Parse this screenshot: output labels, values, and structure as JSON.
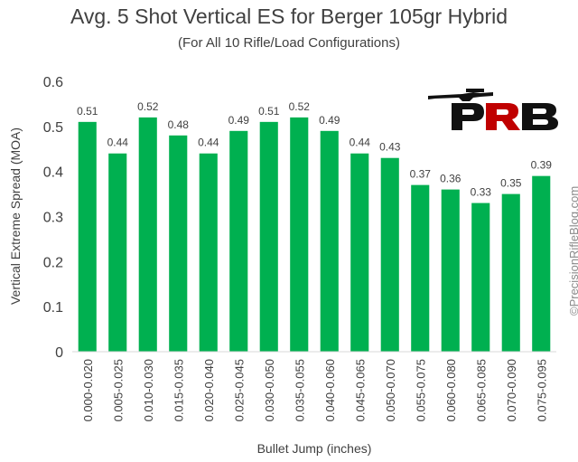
{
  "chart_data": {
    "type": "bar",
    "title": "Avg. 5 Shot Vertical ES for Berger 105gr Hybrid",
    "subtitle": "(For All 10 Rifle/Load Configurations)",
    "xlabel": "Bullet Jump (inches)",
    "ylabel": "Vertical Extreme Spread (MOA)",
    "ylim": [
      0,
      0.6
    ],
    "yticks": [
      "0",
      "0.1",
      "0.2",
      "0.3",
      "0.4",
      "0.5",
      "0.6"
    ],
    "grid": false,
    "categories": [
      "0.000-0.020",
      "0.005-0.025",
      "0.010-0.030",
      "0.015-0.035",
      "0.020-0.040",
      "0.025-0.045",
      "0.030-0.050",
      "0.035-0.055",
      "0.040-0.060",
      "0.045-0.065",
      "0.050-0.070",
      "0.055-0.075",
      "0.060-0.080",
      "0.065-0.085",
      "0.070-0.090",
      "0.075-0.095"
    ],
    "values": [
      0.51,
      0.44,
      0.52,
      0.48,
      0.44,
      0.49,
      0.51,
      0.52,
      0.49,
      0.44,
      0.43,
      0.37,
      0.36,
      0.33,
      0.35,
      0.39
    ],
    "data_labels": [
      "0.51",
      "0.44",
      "0.52",
      "0.48",
      "0.44",
      "0.49",
      "0.51",
      "0.52",
      "0.49",
      "0.44",
      "0.43",
      "0.37",
      "0.36",
      "0.33",
      "0.35",
      "0.39"
    ],
    "bar_color": "#00b050"
  },
  "logo": {
    "text": "PRB",
    "accent": "#c00000"
  },
  "watermark": "©PrecisionRifleBlog.com"
}
